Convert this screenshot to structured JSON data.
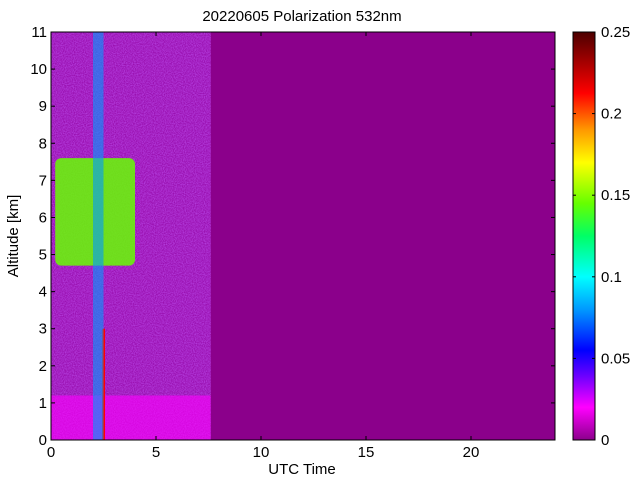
{
  "chart_data": {
    "type": "heatmap",
    "title": "20220605 Polarization 532nm",
    "xlabel": "UTC Time",
    "ylabel": "Altitude [km]",
    "xlim": [
      0,
      24
    ],
    "ylim": [
      0,
      11
    ],
    "x_ticks": [
      0,
      5,
      10,
      15,
      20
    ],
    "y_ticks": [
      0,
      1,
      2,
      3,
      4,
      5,
      6,
      7,
      8,
      9,
      10,
      11
    ],
    "colorbar": {
      "range": [
        0,
        0.25
      ],
      "ticks": [
        0,
        0.05,
        0.1,
        0.15,
        0.2,
        0.25
      ],
      "tick_labels": [
        "0",
        "0.05",
        "0.1",
        "0.15",
        "0.2",
        "0.25"
      ],
      "colormap": "hsv-reversed (magenta → blue → cyan → green → yellow → red → dark red)",
      "colors": [
        "#8b008b",
        "#ff00ff",
        "#6600ff",
        "#0000ff",
        "#0099ff",
        "#00ffff",
        "#00ff66",
        "#66ff00",
        "#ffff00",
        "#ff9900",
        "#ff0000",
        "#4d0000"
      ]
    },
    "data_coverage": {
      "time_start": 0,
      "time_end": 7.6,
      "altitude_top": 11
    },
    "background_value": 0,
    "features": [
      {
        "kind": "cloud",
        "time_range": [
          0.2,
          4.0
        ],
        "altitude_range": [
          4.7,
          7.6
        ],
        "value": 0.15
      },
      {
        "kind": "surface_layer",
        "time_range": [
          0,
          7.6
        ],
        "altitude_range": [
          0,
          1.2
        ],
        "value": 0.02
      },
      {
        "kind": "vertical_streak",
        "time": 2.5,
        "altitude_range": [
          0,
          3
        ],
        "value": 0.22
      },
      {
        "kind": "noise_band",
        "time_range": [
          2.0,
          2.5
        ],
        "altitude_range": [
          0,
          11
        ],
        "value": 0.09
      }
    ]
  }
}
